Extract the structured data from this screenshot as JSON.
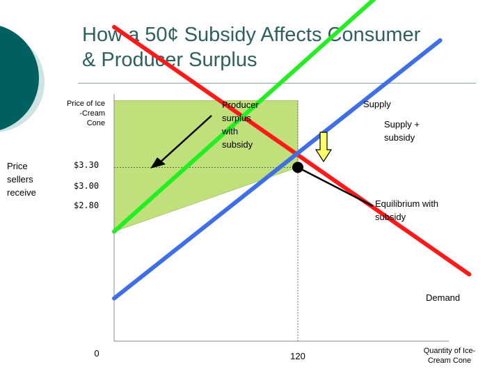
{
  "slide": {
    "title_line1": "How a 50¢ Subsidy Affects Consumer",
    "title_line2": "& Producer Surplus",
    "accent_colors": [
      "#006060",
      "#cfe3e3"
    ]
  },
  "chart_data": {
    "type": "line",
    "title": "How a 50¢ Subsidy Affects Consumer & Producer Surplus",
    "ylabel": [
      "Price of Ice",
      "-Cream",
      "Cone"
    ],
    "xlabel": [
      "Quantity of Ice-",
      "Cream Cone"
    ],
    "x_ticks": [
      {
        "value": 0,
        "label": "0"
      },
      {
        "value": 120,
        "label": "120"
      }
    ],
    "y_ticks": [
      {
        "value": 3.3,
        "label": "$3.30"
      },
      {
        "value": 3.0,
        "label": "$3.00"
      },
      {
        "value": 2.8,
        "label": "$2.80"
      }
    ],
    "series": [
      {
        "name": "Demand",
        "color": "#ff1a1a",
        "points": [
          [
            0,
            3.85
          ],
          [
            232,
            2.0
          ]
        ]
      },
      {
        "name": "Supply",
        "color": "#22ee22",
        "points": [
          [
            0,
            2.32
          ],
          [
            170,
            4.06
          ]
        ]
      },
      {
        "name": "Supply + subsidy",
        "color": "#3f6fe6",
        "points": [
          [
            0,
            1.82
          ],
          [
            213,
            3.75
          ]
        ]
      }
    ],
    "equilibrium": {
      "x": 120,
      "y": 2.8,
      "label": [
        "Equilibrium with",
        "subsidy"
      ]
    },
    "shaded_region": {
      "name": "Producer surplus with subsidy",
      "color": "#bfe07a",
      "price_top": 3.3,
      "price_bottom": 2.32,
      "quantity": 120
    },
    "annotations": {
      "producer_surplus": [
        "Producer",
        "surplus",
        "with",
        "subsidy"
      ],
      "price_sellers_receive": [
        "Price",
        "sellers",
        "receive"
      ],
      "demand": "Demand",
      "supply": "Supply",
      "supply_subsidy": [
        "Supply +",
        "subsidy"
      ]
    },
    "xlim": [
      0,
      232
    ],
    "ylim": [
      1.5,
      4.1
    ]
  }
}
